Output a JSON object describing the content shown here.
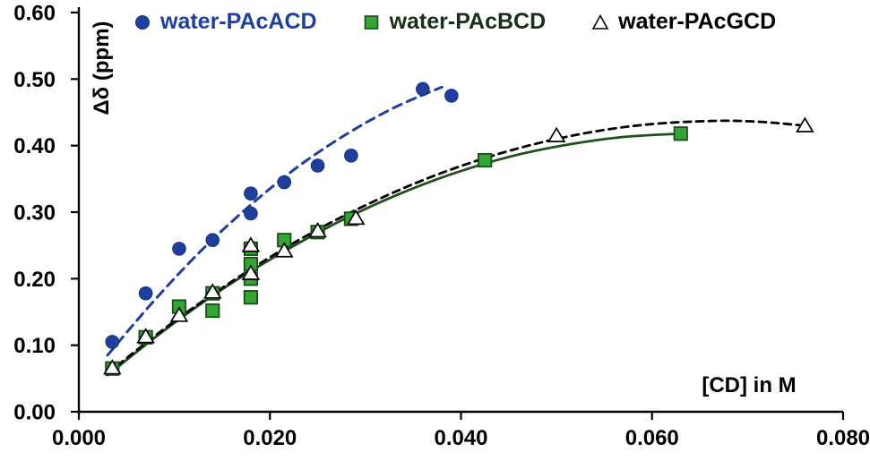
{
  "figure": {
    "background": "#FFFFFF"
  },
  "chart_data": {
    "type": "scatter",
    "title": "",
    "xlabel": "[CD] in M",
    "ylabel": "Δδ (ppm)",
    "xlim": [
      0,
      0.08
    ],
    "ylim": [
      0,
      0.6
    ],
    "grid": "off",
    "legend_position": "top-inside",
    "x_ticks": {
      "values": [
        0,
        0.02,
        0.04,
        0.06,
        0.08
      ],
      "labels": [
        "0.000",
        "0.020",
        "0.040",
        "0.060",
        "0.080"
      ]
    },
    "y_ticks": {
      "values": [
        0,
        0.1,
        0.2,
        0.3,
        0.4,
        0.5,
        0.6
      ],
      "labels": [
        "0.00",
        "0.10",
        "0.20",
        "0.30",
        "0.40",
        "0.50",
        "0.60"
      ]
    },
    "series": [
      {
        "name": "water-PAcACD",
        "marker": "circle",
        "color": "#1F3F9F",
        "border_color": "#15307F",
        "label_color": "#1F3F9F",
        "line_style": "dashed",
        "line_color": "#1F3F9F",
        "line_width": 3,
        "dash": "10 7",
        "points": [
          [
            0.0035,
            0.105
          ],
          [
            0.007,
            0.178
          ],
          [
            0.0105,
            0.245
          ],
          [
            0.014,
            0.258
          ],
          [
            0.018,
            0.298
          ],
          [
            0.018,
            0.328
          ],
          [
            0.0215,
            0.345
          ],
          [
            0.025,
            0.37
          ],
          [
            0.0285,
            0.385
          ],
          [
            0.036,
            0.485
          ],
          [
            0.039,
            0.475
          ]
        ],
        "trend": [
          [
            0.003,
            0.085
          ],
          [
            0.008,
            0.169
          ],
          [
            0.013,
            0.245
          ],
          [
            0.018,
            0.311
          ],
          [
            0.023,
            0.369
          ],
          [
            0.028,
            0.417
          ],
          [
            0.033,
            0.457
          ],
          [
            0.038,
            0.488
          ]
        ]
      },
      {
        "name": "water-PAcBCD",
        "marker": "square",
        "color": "#33A532",
        "border_color": "#1B4D1B",
        "label_color": "#173017",
        "line_style": "solid",
        "line_color": "#1D521D",
        "line_width": 2.8,
        "points": [
          [
            0.0035,
            0.065
          ],
          [
            0.007,
            0.112
          ],
          [
            0.0105,
            0.158
          ],
          [
            0.014,
            0.152
          ],
          [
            0.014,
            0.178
          ],
          [
            0.018,
            0.172
          ],
          [
            0.018,
            0.2
          ],
          [
            0.018,
            0.222
          ],
          [
            0.018,
            0.245
          ],
          [
            0.0215,
            0.258
          ],
          [
            0.025,
            0.27
          ],
          [
            0.0285,
            0.29
          ],
          [
            0.0425,
            0.378
          ],
          [
            0.063,
            0.418
          ]
        ],
        "trend": [
          [
            0.003,
            0.055
          ],
          [
            0.009,
            0.123
          ],
          [
            0.015,
            0.184
          ],
          [
            0.021,
            0.237
          ],
          [
            0.027,
            0.284
          ],
          [
            0.033,
            0.324
          ],
          [
            0.039,
            0.357
          ],
          [
            0.045,
            0.383
          ],
          [
            0.051,
            0.401
          ],
          [
            0.057,
            0.413
          ],
          [
            0.063,
            0.418
          ]
        ]
      },
      {
        "name": "water-PAcGCD",
        "marker": "triangle",
        "color": "#FFFFFF",
        "border_color": "#000000",
        "label_color": "#000000",
        "line_style": "dashed",
        "line_color": "#000000",
        "line_width": 2.8,
        "dash": "8 6",
        "points": [
          [
            0.0035,
            0.066
          ],
          [
            0.007,
            0.113
          ],
          [
            0.0105,
            0.145
          ],
          [
            0.014,
            0.18
          ],
          [
            0.018,
            0.208
          ],
          [
            0.018,
            0.25
          ],
          [
            0.0215,
            0.242
          ],
          [
            0.025,
            0.272
          ],
          [
            0.029,
            0.291
          ],
          [
            0.05,
            0.415
          ],
          [
            0.076,
            0.43
          ]
        ],
        "trend": [
          [
            0.003,
            0.058
          ],
          [
            0.01,
            0.136
          ],
          [
            0.017,
            0.205
          ],
          [
            0.024,
            0.266
          ],
          [
            0.031,
            0.317
          ],
          [
            0.038,
            0.359
          ],
          [
            0.045,
            0.392
          ],
          [
            0.052,
            0.416
          ],
          [
            0.059,
            0.431
          ],
          [
            0.066,
            0.437
          ],
          [
            0.071,
            0.436
          ],
          [
            0.076,
            0.43
          ]
        ]
      }
    ]
  }
}
